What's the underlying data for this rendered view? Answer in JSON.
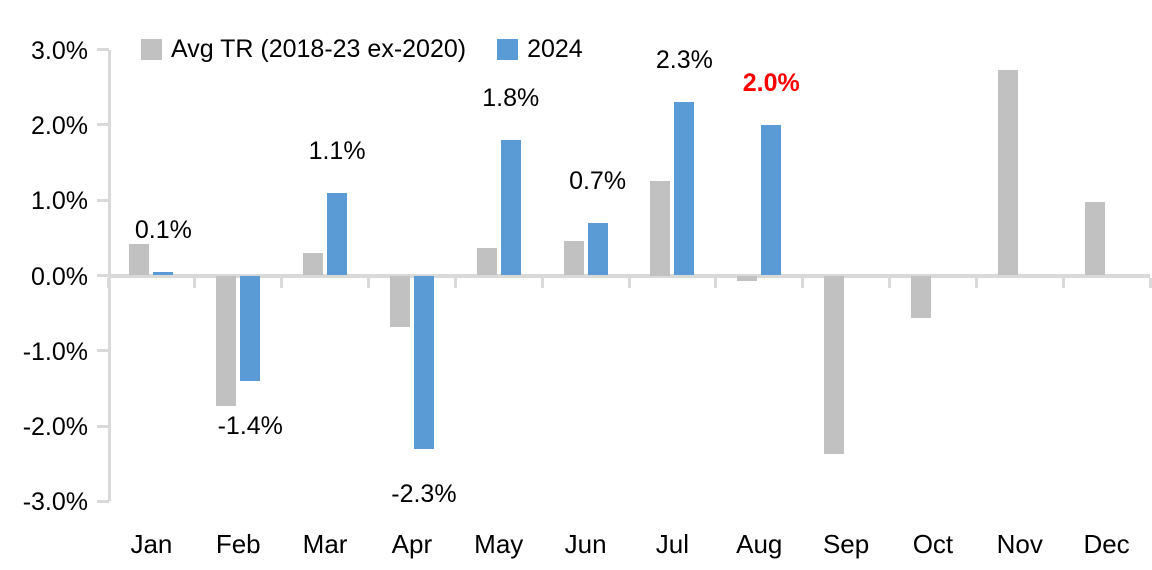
{
  "legend": {
    "series1_label": "Avg TR (2018-23 ex-2020)",
    "series2_label": "2024"
  },
  "colors": {
    "avg_bar": "#C1C1C1",
    "bar_2024": "#5B9BD5",
    "axis_line": "#D9D9D9",
    "label_text": "#000000",
    "highlight_label_color": "#FF0000",
    "background": "#FFFFFF"
  },
  "chart_data": {
    "type": "bar",
    "title": "",
    "xlabel": "",
    "ylabel": "",
    "categories": [
      "Jan",
      "Feb",
      "Mar",
      "Apr",
      "May",
      "Jun",
      "Jul",
      "Aug",
      "Sep",
      "Oct",
      "Nov",
      "Dec"
    ],
    "series": [
      {
        "name": "Avg TR (2018-23 ex-2020)",
        "color": "#C1C1C1",
        "values": [
          0.42,
          -1.73,
          0.3,
          -0.68,
          0.37,
          0.46,
          1.25,
          -0.07,
          -2.37,
          -0.56,
          2.73,
          0.97
        ],
        "data_labels": [
          "",
          "",
          "",
          "",
          "",
          "",
          "",
          "",
          "",
          "",
          "",
          ""
        ]
      },
      {
        "name": "2024",
        "color": "#5B9BD5",
        "values": [
          0.05,
          -1.4,
          1.1,
          -2.3,
          1.8,
          0.7,
          2.3,
          2.0,
          null,
          null,
          null,
          null
        ],
        "data_labels": [
          "0.1%",
          "-1.4%",
          "1.1%",
          "-2.3%",
          "1.8%",
          "0.7%",
          "2.3%",
          "2.0%",
          "",
          "",
          "",
          ""
        ],
        "label_colors": [
          "#000000",
          "#000000",
          "#000000",
          "#000000",
          "#000000",
          "#000000",
          "#000000",
          "#FF0000",
          "",
          "",
          "",
          ""
        ],
        "label_bold": [
          false,
          false,
          false,
          false,
          false,
          false,
          false,
          true,
          false,
          false,
          false,
          false
        ]
      }
    ],
    "y_axis": {
      "ticks": [
        "3.0%",
        "2.0%",
        "1.0%",
        "0.0%",
        "-1.0%",
        "-2.0%",
        "-3.0%"
      ],
      "tick_values": [
        3,
        2,
        1,
        0,
        -1,
        -2,
        -3
      ],
      "min": -3.0,
      "max": 3.0
    },
    "legend_position": "top",
    "grid": false
  }
}
